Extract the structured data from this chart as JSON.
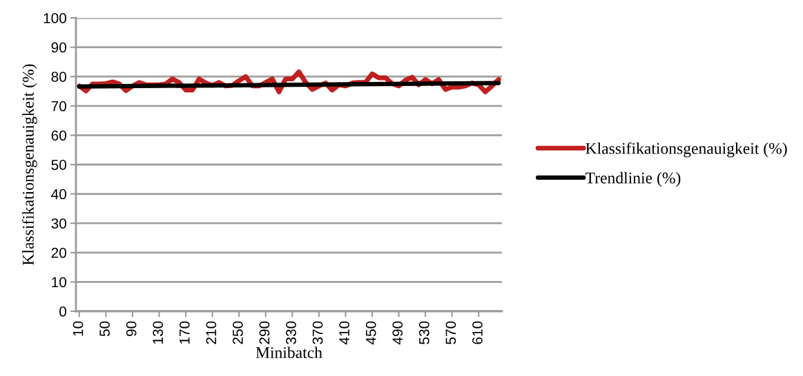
{
  "chart_data": {
    "type": "line",
    "xlabel": "Minibatch",
    "ylabel": "Klassifikationsgenauigkeit (%)",
    "xlim": [
      5,
      645
    ],
    "xticks": [
      {
        "value": 10,
        "label": "10"
      },
      {
        "value": 50,
        "label": "50"
      },
      {
        "value": 90,
        "label": "90"
      },
      {
        "value": 130,
        "label": "130"
      },
      {
        "value": 170,
        "label": "170"
      },
      {
        "value": 210,
        "label": "210"
      },
      {
        "value": 250,
        "label": "250"
      },
      {
        "value": 290,
        "label": "290"
      },
      {
        "value": 330,
        "label": "330"
      },
      {
        "value": 370,
        "label": "370"
      },
      {
        "value": 410,
        "label": "410"
      },
      {
        "value": 450,
        "label": "450"
      },
      {
        "value": 490,
        "label": "490"
      },
      {
        "value": 530,
        "label": "530"
      },
      {
        "value": 570,
        "label": "570"
      },
      {
        "value": 610,
        "label": "610"
      }
    ],
    "ylim": [
      0,
      100
    ],
    "yticks": [
      0,
      10,
      20,
      30,
      40,
      50,
      60,
      70,
      80,
      90,
      100
    ],
    "grid": "y",
    "legend": "right",
    "marker": "none",
    "line_style": "solid",
    "series": [
      {
        "name": "Klassifikationsgenauigkeit (%)",
        "color": "#c0201e",
        "x": [
          10,
          20,
          30,
          40,
          50,
          60,
          70,
          80,
          90,
          100,
          110,
          120,
          130,
          140,
          150,
          160,
          170,
          180,
          190,
          200,
          210,
          220,
          230,
          240,
          250,
          260,
          270,
          280,
          290,
          300,
          310,
          320,
          330,
          340,
          350,
          360,
          370,
          380,
          390,
          400,
          410,
          420,
          430,
          440,
          450,
          460,
          470,
          480,
          490,
          500,
          510,
          520,
          530,
          540,
          550,
          560,
          570,
          580,
          590,
          600,
          610,
          620,
          630,
          640
        ],
        "values": [
          76.8,
          75.1,
          77.5,
          77.5,
          77.6,
          78.2,
          77.5,
          75.2,
          76.8,
          78,
          77.2,
          77.2,
          77.2,
          77.5,
          79.2,
          78,
          75.4,
          75.4,
          79.2,
          77.8,
          77,
          78,
          76.8,
          77,
          78.6,
          80,
          76.8,
          76.8,
          78,
          79.2,
          74.8,
          79.2,
          79.2,
          81.6,
          78,
          75.6,
          76.8,
          77.8,
          75.4,
          77.2,
          76.8,
          77.8,
          78,
          78,
          80.9,
          79.6,
          79.6,
          77.6,
          76.8,
          78.8,
          79.8,
          77.2,
          79,
          77.6,
          79,
          75.6,
          76.4,
          76.4,
          76.8,
          77.8,
          77.2,
          74.8,
          76.8,
          79
        ]
      },
      {
        "name": "Trendlinie (%)",
        "color": "#000000",
        "x": [
          10,
          640
        ],
        "values": [
          76.6,
          77.8
        ]
      }
    ]
  }
}
